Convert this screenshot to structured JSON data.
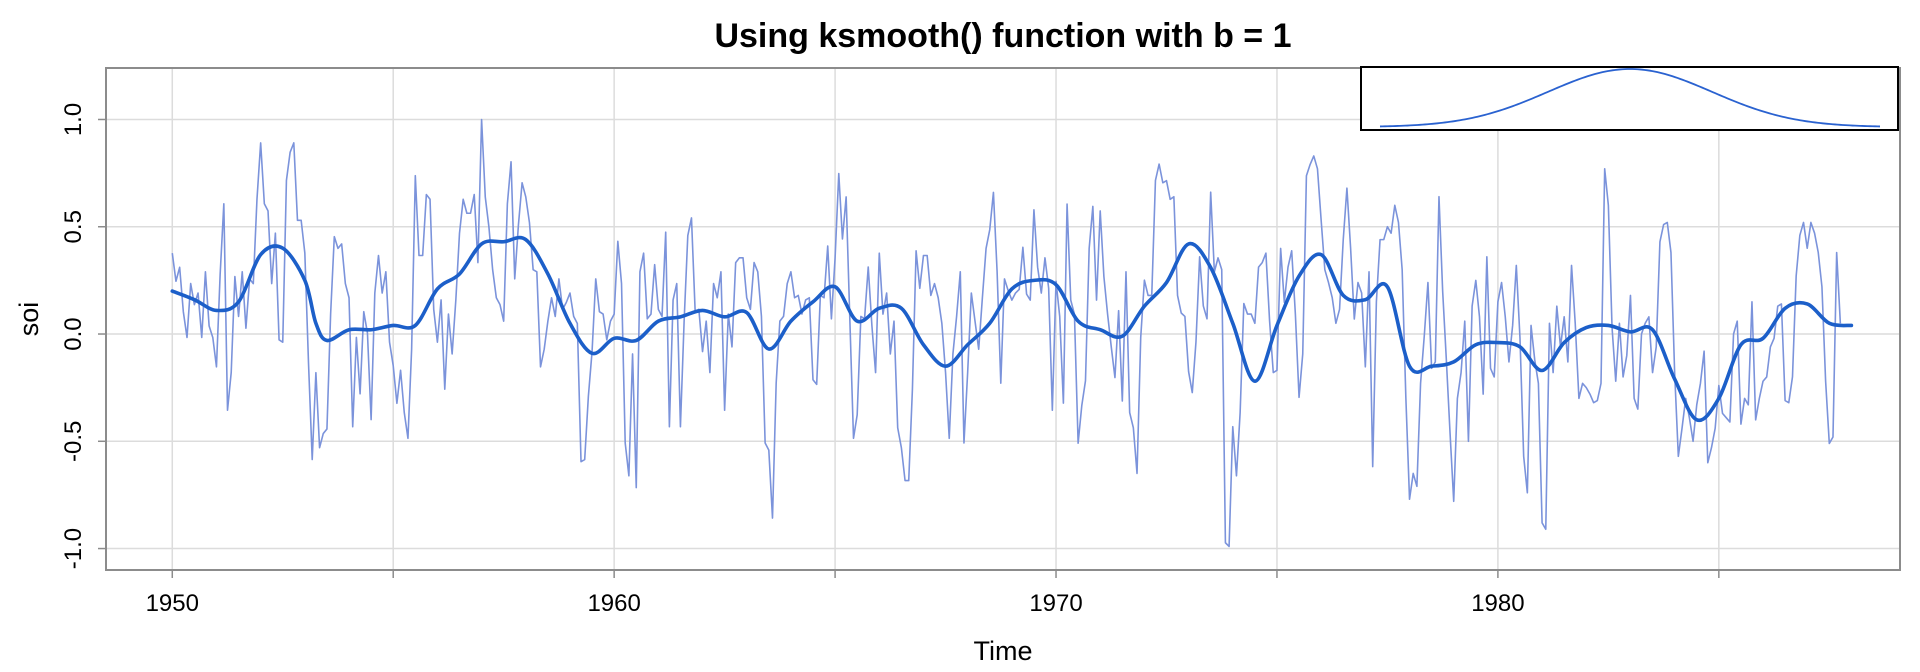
{
  "chart_data": {
    "type": "line",
    "title": "Using ksmooth() function with b = 1",
    "xlabel": "Time",
    "ylabel": "soi",
    "xlim": [
      1948.5,
      1989.1
    ],
    "ylim": [
      -1.1,
      1.24
    ],
    "x_ticks": [
      1950,
      1960,
      1970,
      1980
    ],
    "x_tick_labels": [
      "1950",
      "1960",
      "1970",
      "1980"
    ],
    "x_minor_ticks": [
      1955,
      1965,
      1975,
      1985
    ],
    "y_ticks": [
      -1.0,
      -0.5,
      0.0,
      0.5,
      1.0
    ],
    "y_tick_labels": [
      "-1.0",
      "-0.5",
      "0.0",
      "0.5",
      "1.0"
    ],
    "grid": true,
    "colors": {
      "raw": "#7B93DB",
      "smooth": "#1C5FC9",
      "grid": "#DCDCDC",
      "frame": "#8C8C8C",
      "inset": "#2A62D0"
    },
    "series": [
      {
        "role": "raw",
        "start": 1950,
        "step": 0.0833333,
        "values": [
          0.377,
          0.246,
          0.311,
          0.104,
          -0.016,
          0.235,
          0.137,
          0.191,
          -0.016,
          0.29,
          0.038,
          -0.016,
          -0.153,
          0.279,
          0.607,
          -0.355,
          -0.18,
          0.268,
          0.082,
          0.29,
          0.027,
          0.257,
          0.235,
          0.628,
          0.891,
          0.607,
          0.574,
          0.235,
          0.47,
          -0.027,
          -0.038,
          0.716,
          0.847,
          0.891,
          0.53,
          0.53,
          0.377,
          -0.137,
          -0.585,
          -0.18,
          -0.53,
          -0.464,
          -0.443,
          0.093,
          0.454,
          0.399,
          0.42,
          0.235,
          0.169,
          -0.432,
          -0.016,
          -0.279,
          0.104,
          0.005,
          -0.399,
          0.191,
          0.366,
          0.191,
          0.29,
          -0.038,
          -0.148,
          -0.323,
          -0.169,
          -0.366,
          -0.486,
          -0.071,
          0.738,
          0.366,
          0.366,
          0.65,
          0.628,
          0.115,
          -0.038,
          0.159,
          -0.257,
          0.093,
          -0.093,
          0.158,
          0.47,
          0.628,
          0.563,
          0.563,
          0.65,
          0.333,
          1.0,
          0.639,
          0.497,
          0.3,
          0.169,
          0.137,
          0.06,
          0.607,
          0.803,
          0.257,
          0.508,
          0.705,
          0.639,
          0.519,
          0.3,
          0.29,
          -0.153,
          -0.071,
          0.06,
          0.169,
          0.082,
          0.257,
          0.115,
          0.147,
          0.191,
          0.082,
          0.049,
          -0.595,
          -0.585,
          -0.29,
          -0.082,
          0.257,
          0.104,
          0.093,
          -0.027,
          0.06,
          0.093,
          0.432,
          0.235,
          -0.508,
          -0.661,
          -0.093,
          -0.716,
          0.29,
          0.377,
          0.071,
          0.093,
          0.323,
          0.115,
          0.082,
          0.475,
          -0.432,
          0.159,
          0.235,
          -0.432,
          0.06,
          0.459,
          0.541,
          0.104,
          0.115,
          -0.082,
          0.06,
          -0.18,
          0.235,
          0.169,
          0.29,
          -0.355,
          0.093,
          -0.06,
          0.333,
          0.355,
          0.355,
          0.169,
          0.115,
          0.333,
          0.29,
          0.082,
          -0.508,
          -0.541,
          -0.858,
          -0.229,
          0.06,
          0.082,
          0.235,
          0.29,
          0.169,
          0.18,
          0.093,
          0.159,
          0.169,
          -0.213,
          -0.235,
          0.18,
          0.169,
          0.41,
          0.071,
          0.355,
          0.748,
          0.443,
          0.639,
          0.071,
          -0.486,
          -0.377,
          0.082,
          0.071,
          0.312,
          0.038,
          -0.18,
          0.377,
          0.093,
          0.191,
          -0.093,
          0.06,
          -0.437,
          -0.53,
          -0.683,
          -0.683,
          -0.257,
          0.388,
          0.213,
          0.366,
          0.366,
          0.18,
          0.235,
          0.169,
          0.049,
          -0.18,
          -0.486,
          -0.093,
          0.082,
          0.29,
          -0.508,
          -0.18,
          0.191,
          0.06,
          -0.071,
          0.169,
          0.399,
          0.486,
          0.66,
          0.29,
          -0.229,
          0.257,
          0.203,
          0.158,
          0.191,
          0.208,
          0.404,
          0.186,
          0.158,
          0.579,
          0.312,
          0.191,
          0.355,
          0.213,
          -0.355,
          0.246,
          0.082,
          -0.322,
          0.606,
          0.158,
          0.092,
          -0.509,
          -0.333,
          -0.218,
          0.399,
          0.595,
          0.158,
          0.574,
          0.268,
          0.093,
          -0.06,
          -0.203,
          0.109,
          -0.312,
          0.29,
          -0.366,
          -0.437,
          -0.65,
          -0.016,
          0.251,
          0.18,
          0.18,
          0.716,
          0.792,
          0.705,
          0.715,
          0.628,
          0.64,
          0.18,
          0.098,
          0.082,
          -0.175,
          -0.273,
          -0.038,
          0.36,
          0.131,
          0.071,
          0.661,
          0.29,
          0.355,
          0.3,
          -0.973,
          -0.99,
          -0.432,
          -0.661,
          -0.366,
          0.142,
          0.093,
          0.093,
          0.05,
          0.312,
          0.333,
          0.377,
          0.06,
          -0.18,
          -0.169,
          0.399,
          0.148,
          0.312,
          0.388,
          0.093,
          -0.295,
          -0.093,
          0.738,
          0.79,
          0.83,
          0.77,
          0.53,
          0.3,
          0.24,
          0.17,
          0.05,
          0.115,
          0.44,
          0.68,
          0.4,
          0.07,
          0.24,
          0.191,
          -0.153,
          0.29,
          -0.618,
          0.15,
          0.44,
          0.44,
          0.5,
          0.47,
          0.6,
          0.52,
          0.3,
          -0.295,
          -0.77,
          -0.65,
          -0.71,
          -0.23,
          -0.01,
          0.24,
          -0.16,
          -0.13,
          0.64,
          0.2,
          -0.12,
          -0.46,
          -0.78,
          -0.3,
          -0.18,
          0.06,
          -0.5,
          0.13,
          0.25,
          0.08,
          -0.28,
          0.36,
          -0.16,
          -0.2,
          0.15,
          0.24,
          0.08,
          -0.13,
          0.04,
          0.32,
          -0.02,
          -0.57,
          -0.74,
          0.04,
          -0.12,
          -0.23,
          -0.88,
          -0.91,
          0.05,
          -0.18,
          0.13,
          -0.06,
          0.08,
          -0.13,
          0.32,
          0.05,
          -0.3,
          -0.23,
          -0.25,
          -0.28,
          -0.32,
          -0.31,
          -0.23,
          0.77,
          0.6,
          0.03,
          -0.22,
          0.05,
          -0.2,
          -0.1,
          0.18,
          -0.3,
          -0.35,
          0.0,
          0.05,
          0.08,
          -0.18,
          -0.06,
          0.43,
          0.51,
          0.52,
          0.38,
          -0.18,
          -0.57,
          -0.44,
          -0.3,
          -0.39,
          -0.5,
          -0.33,
          -0.23,
          -0.08,
          -0.6,
          -0.53,
          -0.44,
          -0.24,
          -0.37,
          -0.39,
          -0.41,
          0.0,
          0.06,
          -0.42,
          -0.3,
          -0.33,
          0.15,
          -0.4,
          -0.3,
          -0.22,
          -0.2,
          -0.06,
          -0.02,
          0.13,
          0.14,
          -0.31,
          -0.32,
          -0.2,
          0.27,
          0.46,
          0.52,
          0.4,
          0.52,
          0.47,
          0.38,
          0.22,
          -0.22,
          -0.51,
          -0.48,
          0.38,
          0.05
        ]
      },
      {
        "role": "smooth",
        "x": [
          1950.0,
          1950.5,
          1951.0,
          1951.5,
          1952.0,
          1952.5,
          1953.0,
          1953.25,
          1953.5,
          1954.0,
          1954.5,
          1955.0,
          1955.5,
          1956.0,
          1956.5,
          1957.0,
          1957.5,
          1958.0,
          1958.5,
          1959.0,
          1959.5,
          1960.0,
          1960.5,
          1961.0,
          1961.5,
          1962.0,
          1962.5,
          1963.0,
          1963.5,
          1964.0,
          1964.5,
          1965.0,
          1965.5,
          1966.0,
          1966.5,
          1967.0,
          1967.5,
          1968.0,
          1968.5,
          1969.0,
          1969.5,
          1970.0,
          1970.5,
          1971.0,
          1971.5,
          1972.0,
          1972.5,
          1973.0,
          1973.5,
          1974.0,
          1974.5,
          1975.0,
          1975.5,
          1976.0,
          1976.5,
          1977.0,
          1977.5,
          1978.0,
          1978.5,
          1979.0,
          1979.5,
          1980.0,
          1980.5,
          1981.0,
          1981.5,
          1982.0,
          1982.5,
          1983.0,
          1983.5,
          1984.0,
          1984.5,
          1985.0,
          1985.5,
          1986.0,
          1986.5,
          1987.0,
          1987.5,
          1988.0
        ],
        "y": [
          0.2,
          0.16,
          0.11,
          0.15,
          0.37,
          0.4,
          0.25,
          0.05,
          -0.03,
          0.02,
          0.02,
          0.04,
          0.04,
          0.21,
          0.28,
          0.42,
          0.43,
          0.44,
          0.28,
          0.05,
          -0.09,
          -0.02,
          -0.03,
          0.06,
          0.08,
          0.11,
          0.08,
          0.1,
          -0.07,
          0.06,
          0.15,
          0.22,
          0.06,
          0.12,
          0.12,
          -0.05,
          -0.15,
          -0.05,
          0.05,
          0.21,
          0.25,
          0.23,
          0.06,
          0.02,
          -0.01,
          0.13,
          0.24,
          0.42,
          0.31,
          0.05,
          -0.22,
          0.04,
          0.27,
          0.37,
          0.18,
          0.16,
          0.22,
          -0.15,
          -0.15,
          -0.13,
          -0.05,
          -0.04,
          -0.06,
          -0.17,
          -0.04,
          0.03,
          0.04,
          0.01,
          0.02,
          -0.21,
          -0.4,
          -0.3,
          -0.05,
          -0.02,
          0.12,
          0.14,
          0.05,
          0.04
        ]
      }
    ],
    "inset": {
      "shape": "gaussian kernel"
    }
  }
}
